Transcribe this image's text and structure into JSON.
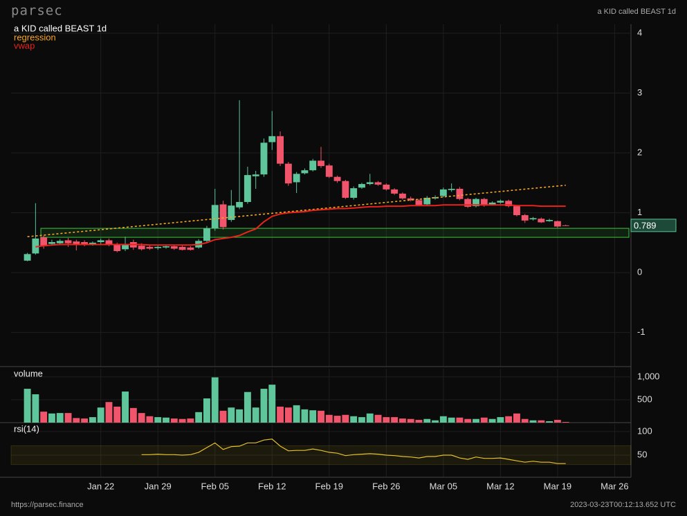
{
  "header": {
    "brand": "parsec",
    "symbol": "a KID called BEAST 1d"
  },
  "footer": {
    "url": "https://parsec.finance",
    "timestamp": "2023-03-23T00:12:13.652 UTC"
  },
  "chart_data": [
    {
      "type": "candlestick",
      "title": "a KID called BEAST 1d",
      "x": [
        "Jan 13",
        "Jan 14",
        "Jan 15",
        "Jan 16",
        "Jan 17",
        "Jan 18",
        "Jan 19",
        "Jan 20",
        "Jan 21",
        "Jan 22",
        "Jan 23",
        "Jan 24",
        "Jan 25",
        "Jan 26",
        "Jan 27",
        "Jan 28",
        "Jan 29",
        "Jan 30",
        "Jan 31",
        "Feb 1",
        "Feb 2",
        "Feb 3",
        "Feb 4",
        "Feb 5",
        "Feb 6",
        "Feb 7",
        "Feb 8",
        "Feb 9",
        "Feb 10",
        "Feb 11",
        "Feb 12",
        "Feb 13",
        "Feb 14",
        "Feb 15",
        "Feb 16",
        "Feb 17",
        "Feb 18",
        "Feb 19",
        "Feb 20",
        "Feb 21",
        "Feb 22",
        "Feb 23",
        "Feb 24",
        "Feb 25",
        "Feb 26",
        "Feb 27",
        "Feb 28",
        "Mar 1",
        "Mar 2",
        "Mar 3",
        "Mar 4",
        "Mar 5",
        "Mar 6",
        "Mar 7",
        "Mar 8",
        "Mar 9",
        "Mar 10",
        "Mar 11",
        "Mar 12",
        "Mar 13",
        "Mar 14",
        "Mar 15",
        "Mar 16",
        "Mar 17",
        "Mar 18",
        "Mar 19",
        "Mar 20"
      ],
      "open": [
        0.2,
        0.32,
        0.59,
        0.48,
        0.49,
        0.54,
        0.52,
        0.51,
        0.48,
        0.51,
        0.54,
        0.47,
        0.39,
        0.51,
        0.45,
        0.43,
        0.41,
        0.42,
        0.44,
        0.43,
        0.42,
        0.42,
        0.53,
        0.74,
        1.14,
        0.88,
        1.09,
        1.18,
        1.61,
        1.64,
        2.18,
        2.28,
        1.82,
        1.51,
        1.66,
        1.71,
        1.87,
        1.79,
        1.6,
        1.53,
        1.25,
        1.42,
        1.48,
        1.51,
        1.47,
        1.39,
        1.32,
        1.24,
        1.21,
        1.14,
        1.24,
        1.28,
        1.38,
        1.4,
        1.23,
        1.11,
        1.23,
        1.14,
        1.17,
        1.2,
        1.11,
        0.96,
        0.89,
        0.9,
        0.86,
        0.86,
        0.79
      ],
      "high": [
        0.33,
        1.16,
        0.62,
        0.55,
        0.56,
        0.58,
        0.55,
        0.54,
        0.52,
        0.57,
        0.57,
        0.5,
        0.6,
        0.55,
        0.49,
        0.47,
        0.45,
        0.46,
        0.46,
        0.45,
        0.44,
        0.56,
        0.78,
        1.4,
        1.2,
        1.38,
        2.88,
        1.77,
        1.7,
        2.24,
        2.7,
        2.36,
        1.85,
        1.68,
        1.74,
        1.9,
        2.1,
        1.82,
        1.62,
        1.55,
        1.44,
        1.5,
        1.65,
        1.53,
        1.49,
        1.41,
        1.34,
        1.27,
        1.23,
        1.28,
        1.29,
        1.42,
        1.49,
        1.43,
        1.25,
        1.25,
        1.25,
        1.19,
        1.22,
        1.22,
        1.13,
        0.98,
        0.93,
        0.92,
        0.9,
        0.87,
        0.8
      ],
      "low": [
        0.19,
        0.3,
        0.4,
        0.45,
        0.46,
        0.43,
        0.37,
        0.44,
        0.45,
        0.47,
        0.44,
        0.34,
        0.36,
        0.38,
        0.37,
        0.38,
        0.38,
        0.4,
        0.38,
        0.37,
        0.37,
        0.4,
        0.5,
        0.7,
        0.72,
        0.85,
        1.06,
        1.15,
        1.4,
        1.6,
        2.05,
        1.78,
        1.45,
        1.33,
        1.64,
        1.69,
        1.75,
        1.58,
        1.5,
        1.23,
        1.22,
        1.4,
        1.46,
        1.45,
        1.37,
        1.3,
        1.22,
        1.19,
        1.11,
        1.12,
        1.22,
        1.26,
        1.35,
        1.21,
        1.08,
        1.09,
        1.1,
        1.12,
        1.15,
        1.09,
        0.94,
        0.83,
        0.87,
        0.83,
        0.85,
        0.75,
        0.78
      ],
      "close": [
        0.31,
        0.57,
        0.44,
        0.51,
        0.53,
        0.49,
        0.46,
        0.46,
        0.5,
        0.54,
        0.46,
        0.36,
        0.48,
        0.42,
        0.39,
        0.4,
        0.43,
        0.44,
        0.4,
        0.38,
        0.38,
        0.53,
        0.74,
        1.13,
        0.76,
        1.12,
        1.18,
        1.63,
        1.64,
        2.17,
        2.28,
        1.82,
        1.49,
        1.65,
        1.71,
        1.87,
        1.78,
        1.6,
        1.53,
        1.25,
        1.41,
        1.48,
        1.51,
        1.47,
        1.39,
        1.32,
        1.24,
        1.21,
        1.13,
        1.25,
        1.26,
        1.39,
        1.4,
        1.23,
        1.1,
        1.23,
        1.12,
        1.17,
        1.2,
        1.11,
        0.96,
        0.87,
        0.91,
        0.84,
        0.88,
        0.77,
        0.789
      ],
      "colors": {
        "up": "#5fc59b",
        "down": "#f0556b"
      },
      "series": [
        {
          "name": "regression",
          "color": "#f5a623",
          "dashed": true,
          "x": [
            "Jan 13",
            "Mar 20"
          ],
          "values": [
            0.6,
            1.46
          ]
        },
        {
          "name": "vwap",
          "color": "#e8241c",
          "values": [
            null,
            0.43,
            0.45,
            0.46,
            0.47,
            0.47,
            0.47,
            0.47,
            0.47,
            0.47,
            0.47,
            0.47,
            0.47,
            0.47,
            0.47,
            0.46,
            0.46,
            0.46,
            0.46,
            0.46,
            0.46,
            0.47,
            0.5,
            0.55,
            0.57,
            0.59,
            0.62,
            0.68,
            0.73,
            0.85,
            0.94,
            0.98,
            1.0,
            1.01,
            1.02,
            1.04,
            1.05,
            1.06,
            1.07,
            1.07,
            1.08,
            1.09,
            1.1,
            1.1,
            1.11,
            1.11,
            1.11,
            1.12,
            1.12,
            1.12,
            1.12,
            1.13,
            1.13,
            1.13,
            1.13,
            1.13,
            1.13,
            1.13,
            1.13,
            1.13,
            1.12,
            1.12,
            1.12,
            1.11,
            1.11,
            1.11,
            1.11
          ]
        }
      ],
      "zone": {
        "start": "Jan 15",
        "low": 0.59,
        "high": 0.74,
        "color": "#3ec43e"
      },
      "xlim": [
        "Jan 11",
        "Mar 28"
      ],
      "xticks": [
        "Jan 22",
        "Jan 29",
        "Feb 05",
        "Feb 12",
        "Feb 19",
        "Feb 26",
        "Mar 05",
        "Mar 12",
        "Mar 19",
        "Mar 26"
      ],
      "ylim": [
        -1.57,
        4.15
      ],
      "yticks": [
        -1,
        0,
        1,
        2,
        3,
        4
      ],
      "grid": true
    },
    {
      "type": "bar",
      "title": "volume",
      "values": [
        740,
        620,
        240,
        200,
        210,
        210,
        100,
        90,
        120,
        330,
        450,
        350,
        680,
        320,
        210,
        140,
        120,
        110,
        90,
        80,
        90,
        230,
        530,
        990,
        260,
        330,
        290,
        670,
        330,
        740,
        830,
        350,
        330,
        380,
        290,
        270,
        260,
        170,
        150,
        170,
        140,
        120,
        200,
        170,
        120,
        120,
        90,
        80,
        60,
        80,
        50,
        140,
        110,
        110,
        80,
        80,
        110,
        80,
        120,
        140,
        200,
        80,
        50,
        50,
        30,
        60,
        15
      ],
      "ylim": [
        0,
        1180
      ],
      "yticks": [
        {
          "value": 1000,
          "label": "1,000"
        },
        500
      ],
      "grid": true
    },
    {
      "type": "line",
      "title": "rsi(14)",
      "color": "#e6c229",
      "values": [
        null,
        null,
        null,
        null,
        null,
        null,
        null,
        null,
        null,
        null,
        null,
        null,
        null,
        null,
        51,
        51,
        52,
        51,
        51,
        50,
        51,
        56,
        66,
        76,
        62,
        68,
        69,
        76,
        76,
        82,
        84,
        69,
        59,
        60,
        60,
        63,
        60,
        56,
        54,
        49,
        51,
        52,
        53,
        52,
        50,
        49,
        47,
        46,
        44,
        47,
        47,
        50,
        50,
        44,
        41,
        46,
        43,
        43,
        44,
        41,
        38,
        35,
        37,
        35,
        35,
        32,
        32
      ],
      "band": [
        30,
        70
      ],
      "ylim": [
        3,
        116
      ],
      "yticks": [
        50,
        100
      ],
      "grid": true
    }
  ]
}
